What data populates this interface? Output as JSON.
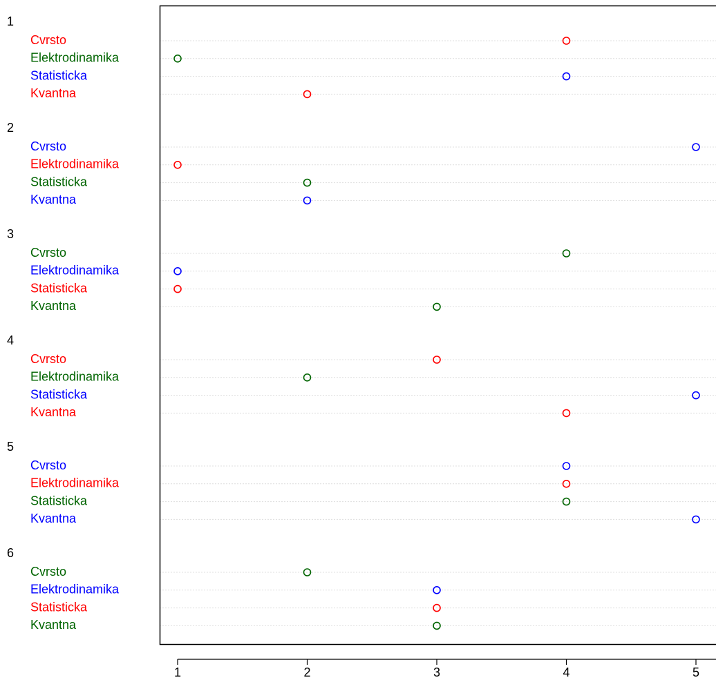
{
  "chart_data": {
    "type": "dotchart",
    "xlim": [
      0.86,
      5.15
    ],
    "x_ticks": [
      "1",
      "2",
      "3",
      "4",
      "5"
    ],
    "grid": "dotted horizontal lines",
    "colors": {
      "red": "#ff0000",
      "green": "#006400",
      "blue": "#0000ff",
      "axis": "#000000",
      "grid": "#bebebe"
    },
    "groups": [
      {
        "label": "1",
        "rows": [
          {
            "label": "Cvrsto",
            "value": 4,
            "color": "red"
          },
          {
            "label": "Elektrodinamika",
            "value": 1,
            "color": "green"
          },
          {
            "label": "Statisticka",
            "value": 4,
            "color": "blue"
          },
          {
            "label": "Kvantna",
            "value": 2,
            "color": "red"
          }
        ]
      },
      {
        "label": "2",
        "rows": [
          {
            "label": "Cvrsto",
            "value": 5,
            "color": "blue"
          },
          {
            "label": "Elektrodinamika",
            "value": 1,
            "color": "red"
          },
          {
            "label": "Statisticka",
            "value": 2,
            "color": "green"
          },
          {
            "label": "Kvantna",
            "value": 2,
            "color": "blue"
          }
        ]
      },
      {
        "label": "3",
        "rows": [
          {
            "label": "Cvrsto",
            "value": 4,
            "color": "green"
          },
          {
            "label": "Elektrodinamika",
            "value": 1,
            "color": "blue"
          },
          {
            "label": "Statisticka",
            "value": 1,
            "color": "red"
          },
          {
            "label": "Kvantna",
            "value": 3,
            "color": "green"
          }
        ]
      },
      {
        "label": "4",
        "rows": [
          {
            "label": "Cvrsto",
            "value": 3,
            "color": "red"
          },
          {
            "label": "Elektrodinamika",
            "value": 2,
            "color": "green"
          },
          {
            "label": "Statisticka",
            "value": 5,
            "color": "blue"
          },
          {
            "label": "Kvantna",
            "value": 4,
            "color": "red"
          }
        ]
      },
      {
        "label": "5",
        "rows": [
          {
            "label": "Cvrsto",
            "value": 4,
            "color": "blue"
          },
          {
            "label": "Elektrodinamika",
            "value": 4,
            "color": "red"
          },
          {
            "label": "Statisticka",
            "value": 4,
            "color": "green"
          },
          {
            "label": "Kvantna",
            "value": 5,
            "color": "blue"
          }
        ]
      },
      {
        "label": "6",
        "rows": [
          {
            "label": "Cvrsto",
            "value": 2,
            "color": "green"
          },
          {
            "label": "Elektrodinamika",
            "value": 3,
            "color": "blue"
          },
          {
            "label": "Statisticka",
            "value": 3,
            "color": "red"
          },
          {
            "label": "Kvantna",
            "value": 3,
            "color": "green"
          }
        ]
      }
    ]
  }
}
